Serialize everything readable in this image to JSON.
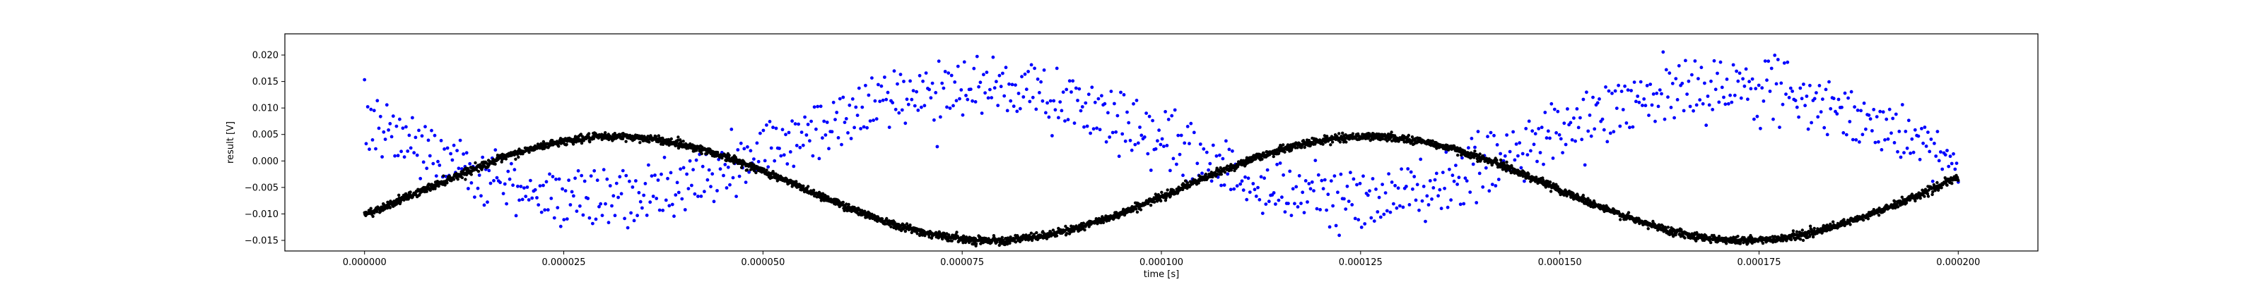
{
  "chart_data": {
    "type": "scatter",
    "title": "",
    "xlabel": "time [s]",
    "ylabel": "result [V]",
    "xlim": [
      -1e-05,
      0.00021
    ],
    "ylim": [
      -0.017,
      0.024
    ],
    "xticks": [
      0.0,
      2.5e-05,
      5e-05,
      7.5e-05,
      0.0001,
      0.000125,
      0.00015,
      0.000175,
      0.0002
    ],
    "xtick_labels": [
      "0.000000",
      "0.000025",
      "0.000050",
      "0.000075",
      "0.000100",
      "0.000125",
      "0.000150",
      "0.000175",
      "0.000200"
    ],
    "yticks": [
      -0.015,
      -0.01,
      -0.005,
      0.0,
      0.005,
      0.01,
      0.015,
      0.02
    ],
    "ytick_labels": [
      "−0.015",
      "−0.010",
      "−0.005",
      "0.000",
      "0.005",
      "0.010",
      "0.015",
      "0.020"
    ],
    "grid": false,
    "series": [
      {
        "color": "#0000ff",
        "marker": "dot",
        "model": "two interleaved noisy sinusoids",
        "x_range": [
          0.0,
          0.0002
        ],
        "num_points": 1000,
        "upper_branch": {
          "amplitude": 0.0105,
          "offset": 0.006,
          "period": 9.45e-05,
          "peak_time": 7.65e-05,
          "noise": 0.0022
        },
        "lower_branch": {
          "amplitude": 0.0105,
          "offset": 0.001,
          "period": 9.45e-05,
          "peak_time": 7.65e-05,
          "noise": 0.0022
        }
      },
      {
        "color": "#000000",
        "marker": "dot",
        "model": "dense sinusoid",
        "x_range": [
          0.0,
          0.0002
        ],
        "num_points": 4000,
        "offset": -0.0052,
        "amplitude": 0.0098,
        "period": 9.45e-05,
        "peak_time": 3.15e-05,
        "noise": 0.00035,
        "samples": [
          [
            0.0,
            -0.011
          ],
          [
            3.15e-05,
            0.0046
          ],
          [
            7.88e-05,
            -0.015
          ],
          [
            0.000126,
            0.0046
          ],
          [
            0.000173,
            -0.015
          ],
          [
            0.0002,
            0.0002
          ]
        ]
      }
    ]
  }
}
